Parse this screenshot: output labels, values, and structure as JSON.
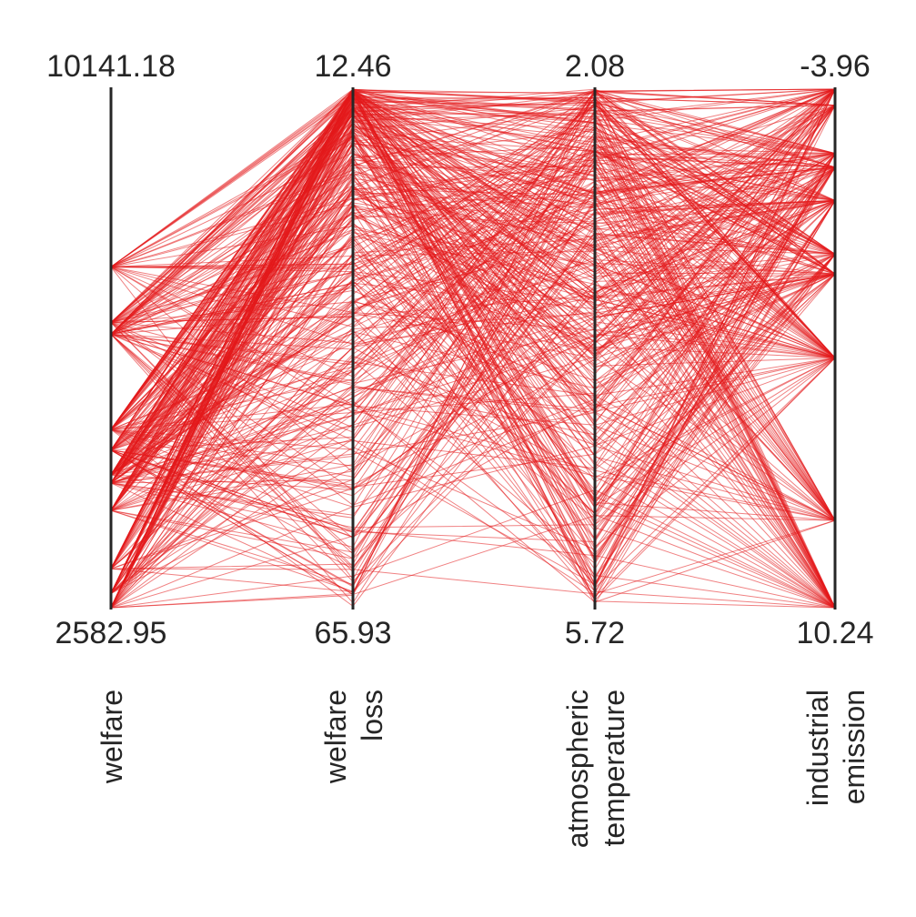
{
  "chart_data": {
    "type": "parallel-coordinates",
    "line_color": "#e41a1c",
    "axes": [
      {
        "name_lines": [
          "welfare"
        ],
        "top_label": "10141.18",
        "bottom_label": "2582.95",
        "top": 10141.18,
        "bottom": 2582.95
      },
      {
        "name_lines": [
          "welfare",
          "loss"
        ],
        "top_label": "12.46",
        "bottom_label": "65.93",
        "top": 12.46,
        "bottom": 65.93
      },
      {
        "name_lines": [
          "atmospheric",
          "temperature"
        ],
        "top_label": "2.08",
        "bottom_label": "5.72",
        "top": 2.08,
        "bottom": 5.72
      },
      {
        "name_lines": [
          "industrial",
          "emission"
        ],
        "top_label": "-3.96",
        "bottom_label": "10.24",
        "top": -3.96,
        "bottom": 10.24
      }
    ],
    "welfare_levels": [
      7550,
      6740,
      6570,
      5180,
      4880,
      4520,
      4400,
      4000,
      3150,
      2790,
      2582.95
    ],
    "emission_levels": [
      -3.96,
      -3.52,
      -2.2,
      -1.82,
      -0.91,
      0.56,
      1.1,
      3.4,
      7.85,
      10.24
    ]
  }
}
